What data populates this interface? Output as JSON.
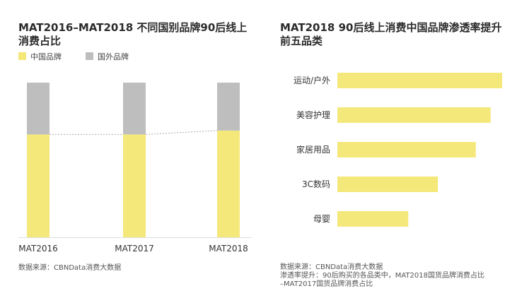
{
  "chart_data": [
    {
      "type": "bar",
      "stacked": true,
      "title": "MAT2016–MAT2018 不同国别品牌90后线上消费占比",
      "categories": [
        "MAT2016",
        "MAT2017",
        "MAT2018"
      ],
      "series": [
        {
          "name": "中国品牌",
          "values": [
            66.5,
            66.5,
            69
          ],
          "color": "#f5e87a"
        },
        {
          "name": "国外品牌",
          "values": [
            33.5,
            33.5,
            31
          ],
          "color": "#bebebe"
        }
      ],
      "ylim": [
        0,
        100
      ],
      "unit": "%",
      "legend": "top-left",
      "source": "数据来源：CBNData消费大数据"
    },
    {
      "type": "bar",
      "orientation": "horizontal",
      "title": "MAT2018 90后线上消费中国品牌渗透率提升前五品类",
      "categories": [
        "运动/户外",
        "美容护理",
        "家居用品",
        "3C数码",
        "母婴"
      ],
      "values": [
        1.0,
        0.93,
        0.84,
        0.61,
        0.43
      ],
      "unit": "relative",
      "color": "#f5e87a",
      "source": "数据来源：CBNData消费大数据",
      "note_line1": "渗透率提升：90后购买的各品类中，MAT2018国货品牌消费占比",
      "note_line2": "–MAT2017国货品牌消费占比"
    }
  ]
}
